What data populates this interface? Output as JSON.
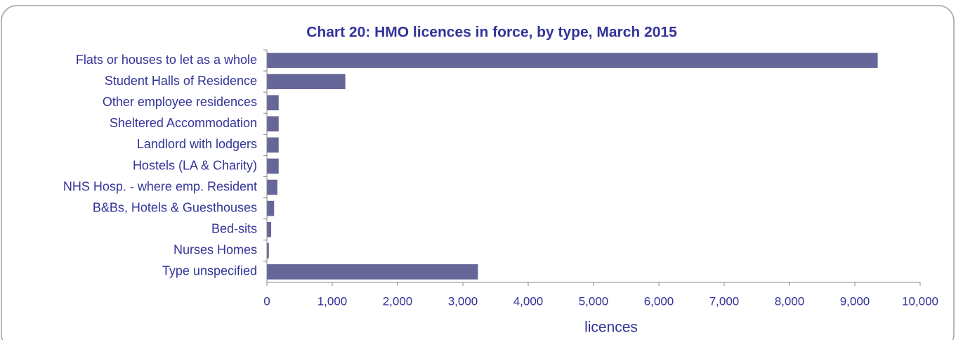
{
  "chart_data": {
    "type": "bar",
    "orientation": "horizontal",
    "title": "Chart 20: HMO licences in force, by type, March 2015",
    "x_label": "licences",
    "categories": [
      "Flats or houses to let as a whole",
      "Student Halls of Residence",
      "Other employee residences",
      "Sheltered Accommodation",
      "Landlord with lodgers",
      "Hostels (LA & Charity)",
      "NHS Hosp. - where emp. Resident",
      "B&Bs, Hotels & Guesthouses",
      "Bed-sits",
      "Nurses Homes",
      "Type unspecified"
    ],
    "values": [
      9350,
      1200,
      180,
      180,
      180,
      180,
      160,
      110,
      65,
      30,
      3230
    ],
    "color": "#666699",
    "xlim": [
      0,
      10000
    ],
    "xticks": [
      0,
      {
        "value": 1000,
        "label": "1,000"
      },
      {
        "value": 2000,
        "label": "2,000"
      },
      {
        "value": 3000,
        "label": "3,000"
      },
      {
        "value": 4000,
        "label": "4,000"
      },
      {
        "value": 5000,
        "label": "5,000"
      },
      {
        "value": 6000,
        "label": "6,000"
      },
      {
        "value": 7000,
        "label": "7,000"
      },
      {
        "value": 8000,
        "label": "8,000"
      },
      {
        "value": 9000,
        "label": "9,000"
      },
      {
        "value": 10000,
        "label": "10,000"
      }
    ],
    "grid": false
  }
}
